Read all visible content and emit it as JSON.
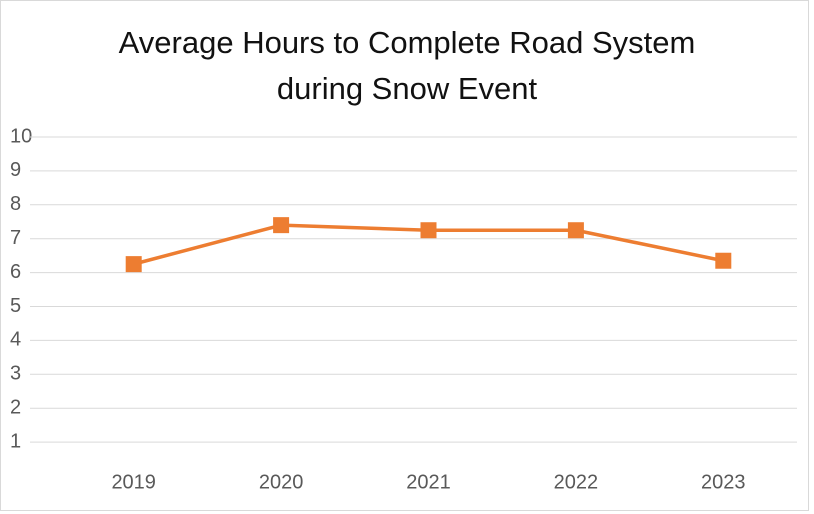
{
  "chart_data": {
    "type": "line",
    "title": "Average Hours to Complete Road System during Snow Event",
    "categories": [
      "2019",
      "2020",
      "2021",
      "2022",
      "2023"
    ],
    "series": [
      {
        "name": "Average Hours",
        "color": "#ed7d31",
        "values": [
          6.25,
          7.4,
          7.25,
          7.25,
          6.35
        ]
      }
    ],
    "ylim": [
      0,
      10
    ],
    "yticks": [
      1,
      2,
      3,
      4,
      5,
      6,
      7,
      8,
      9,
      10
    ],
    "grid": true
  }
}
